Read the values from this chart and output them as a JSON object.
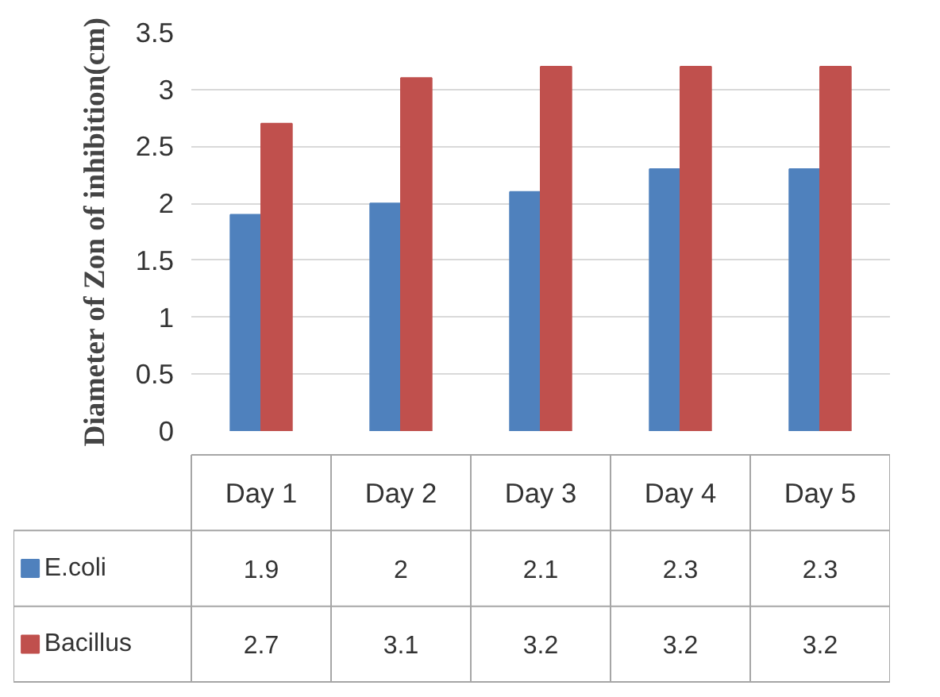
{
  "chart_data": {
    "type": "bar",
    "ylabel": "Diameter of Zon of inhibition(cm)",
    "categories": [
      "Day 1",
      "Day 2",
      "Day 3",
      "Day 4",
      "Day 5"
    ],
    "series": [
      {
        "name": "E.coli",
        "color": "#4f81bd",
        "values": [
          1.9,
          2,
          2.1,
          2.3,
          2.3
        ]
      },
      {
        "name": "Bacillus",
        "color": "#c0504d",
        "values": [
          2.7,
          3.1,
          3.2,
          3.2,
          3.2
        ]
      }
    ],
    "ylim": [
      0,
      3.5
    ],
    "yticks": [
      0,
      0.5,
      1,
      1.5,
      2,
      2.5,
      3,
      3.5
    ],
    "grid": "y",
    "legend": "bottom",
    "data_labels": true
  }
}
